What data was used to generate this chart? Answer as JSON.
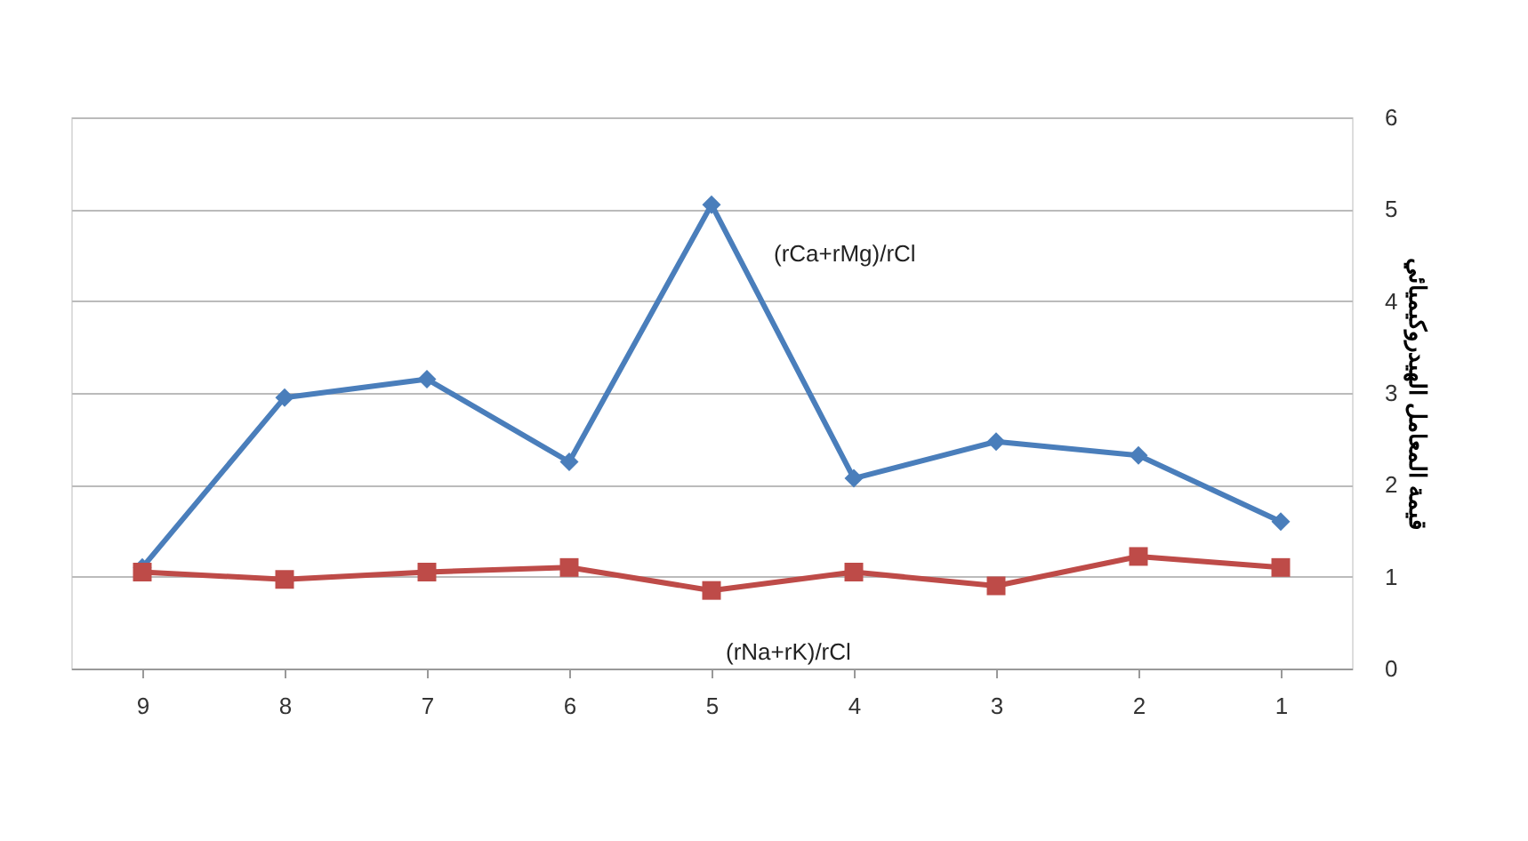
{
  "chart_data": {
    "type": "line",
    "ylabel": "قيمة المعامل الهيدروكيميائي",
    "categories": [
      "9",
      "8",
      "7",
      "6",
      "5",
      "4",
      "3",
      "2",
      "1"
    ],
    "series": [
      {
        "name": "(rCa+rMg)/rCl",
        "color": "#4a7ebb",
        "marker": "diamond",
        "values": [
          1.1,
          2.95,
          3.15,
          2.25,
          5.05,
          2.07,
          2.47,
          2.32,
          1.6
        ]
      },
      {
        "name": "(rNa+rK)/rCl",
        "color": "#be4b48",
        "marker": "square",
        "values": [
          1.05,
          0.97,
          1.05,
          1.1,
          0.85,
          1.05,
          0.9,
          1.22,
          1.1
        ]
      }
    ],
    "ylim": [
      0,
      6
    ],
    "yticks": [
      0,
      1,
      2,
      3,
      4,
      5,
      6
    ],
    "grid": "y"
  }
}
